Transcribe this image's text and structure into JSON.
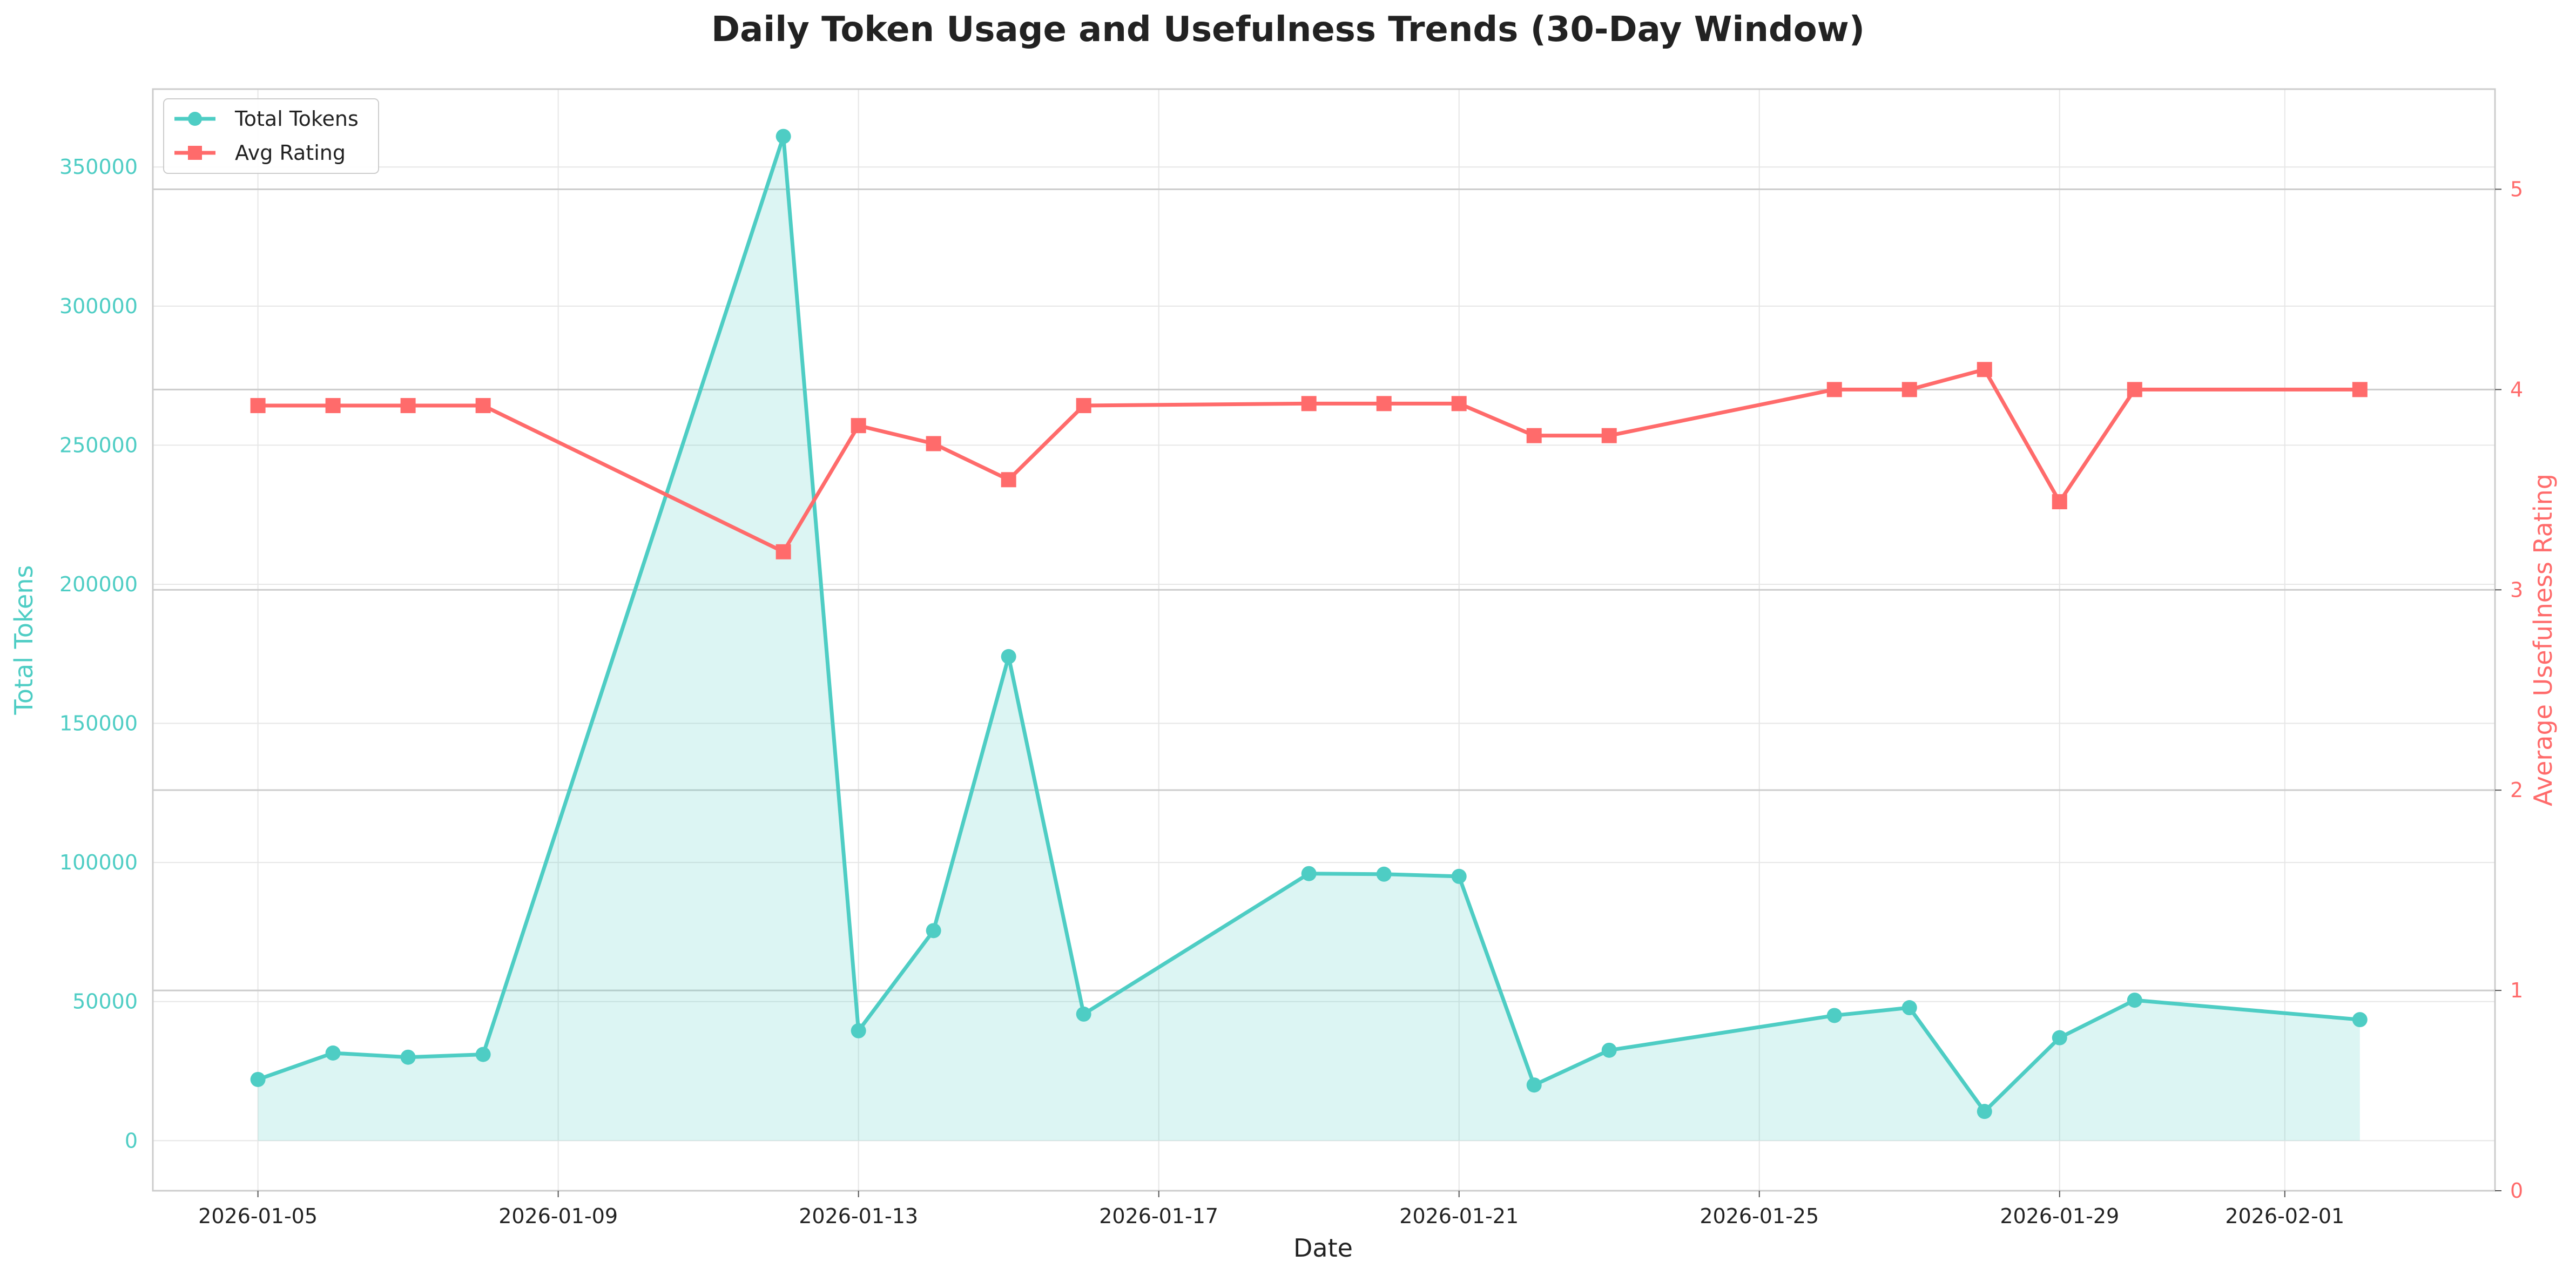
{
  "chart_data": {
    "type": "line",
    "title": "Daily Token Usage and Usefulness Trends (30-Day Window)",
    "xlabel": "Date",
    "ylabel_left": "Total Tokens",
    "ylabel_right": "Average Usefulness Rating",
    "x_ticks": [
      "2026-01-05",
      "2026-01-09",
      "2026-01-13",
      "2026-01-17",
      "2026-01-21",
      "2026-01-25",
      "2026-01-29",
      "2026-02-01"
    ],
    "y_left_ticks": [
      0,
      50000,
      100000,
      150000,
      200000,
      250000,
      300000,
      350000
    ],
    "y_right_ticks": [
      0,
      1,
      2,
      3,
      4,
      5
    ],
    "ylim_left": [
      -18000,
      378000
    ],
    "ylim_right": [
      0,
      5.5
    ],
    "xlim": [
      "2026-01-03.6",
      "2026-02-03.8"
    ],
    "legend_position": "top-left",
    "legend": [
      "Total Tokens",
      "Avg Rating"
    ],
    "colors": {
      "tokens": "#4ECDC4",
      "rating": "#FF6B6B",
      "fill": "#4ECDC4",
      "grid": "#e6e6e6",
      "twin_grid": "#cccccc",
      "axis_text": "#222222"
    },
    "series": [
      {
        "name": "Total Tokens",
        "axis": "left",
        "marker": "circle",
        "x": [
          "2026-01-05",
          "2026-01-06",
          "2026-01-07",
          "2026-01-08",
          "2026-01-12",
          "2026-01-13",
          "2026-01-14",
          "2026-01-15",
          "2026-01-16",
          "2026-01-19",
          "2026-01-20",
          "2026-01-21",
          "2026-01-22",
          "2026-01-23",
          "2026-01-26",
          "2026-01-27",
          "2026-01-28",
          "2026-01-29",
          "2026-01-30",
          "2026-02-02"
        ],
        "values": [
          22000,
          31500,
          30000,
          31000,
          361000,
          39500,
          75500,
          174000,
          45500,
          96000,
          95800,
          95000,
          20000,
          32500,
          45000,
          47800,
          10500,
          37000,
          50500,
          43500
        ]
      },
      {
        "name": "Avg Rating",
        "axis": "right",
        "marker": "square",
        "x": [
          "2026-01-05",
          "2026-01-06",
          "2026-01-07",
          "2026-01-08",
          "2026-01-12",
          "2026-01-13",
          "2026-01-14",
          "2026-01-15",
          "2026-01-16",
          "2026-01-19",
          "2026-01-20",
          "2026-01-21",
          "2026-01-22",
          "2026-01-23",
          "2026-01-26",
          "2026-01-27",
          "2026-01-28",
          "2026-01-29",
          "2026-01-30",
          "2026-02-02"
        ],
        "values": [
          3.92,
          3.92,
          3.92,
          3.92,
          3.19,
          3.82,
          3.73,
          3.55,
          3.92,
          3.93,
          3.93,
          3.93,
          3.77,
          3.77,
          4.0,
          4.0,
          4.1,
          3.44,
          4.0,
          4.0
        ]
      }
    ]
  }
}
